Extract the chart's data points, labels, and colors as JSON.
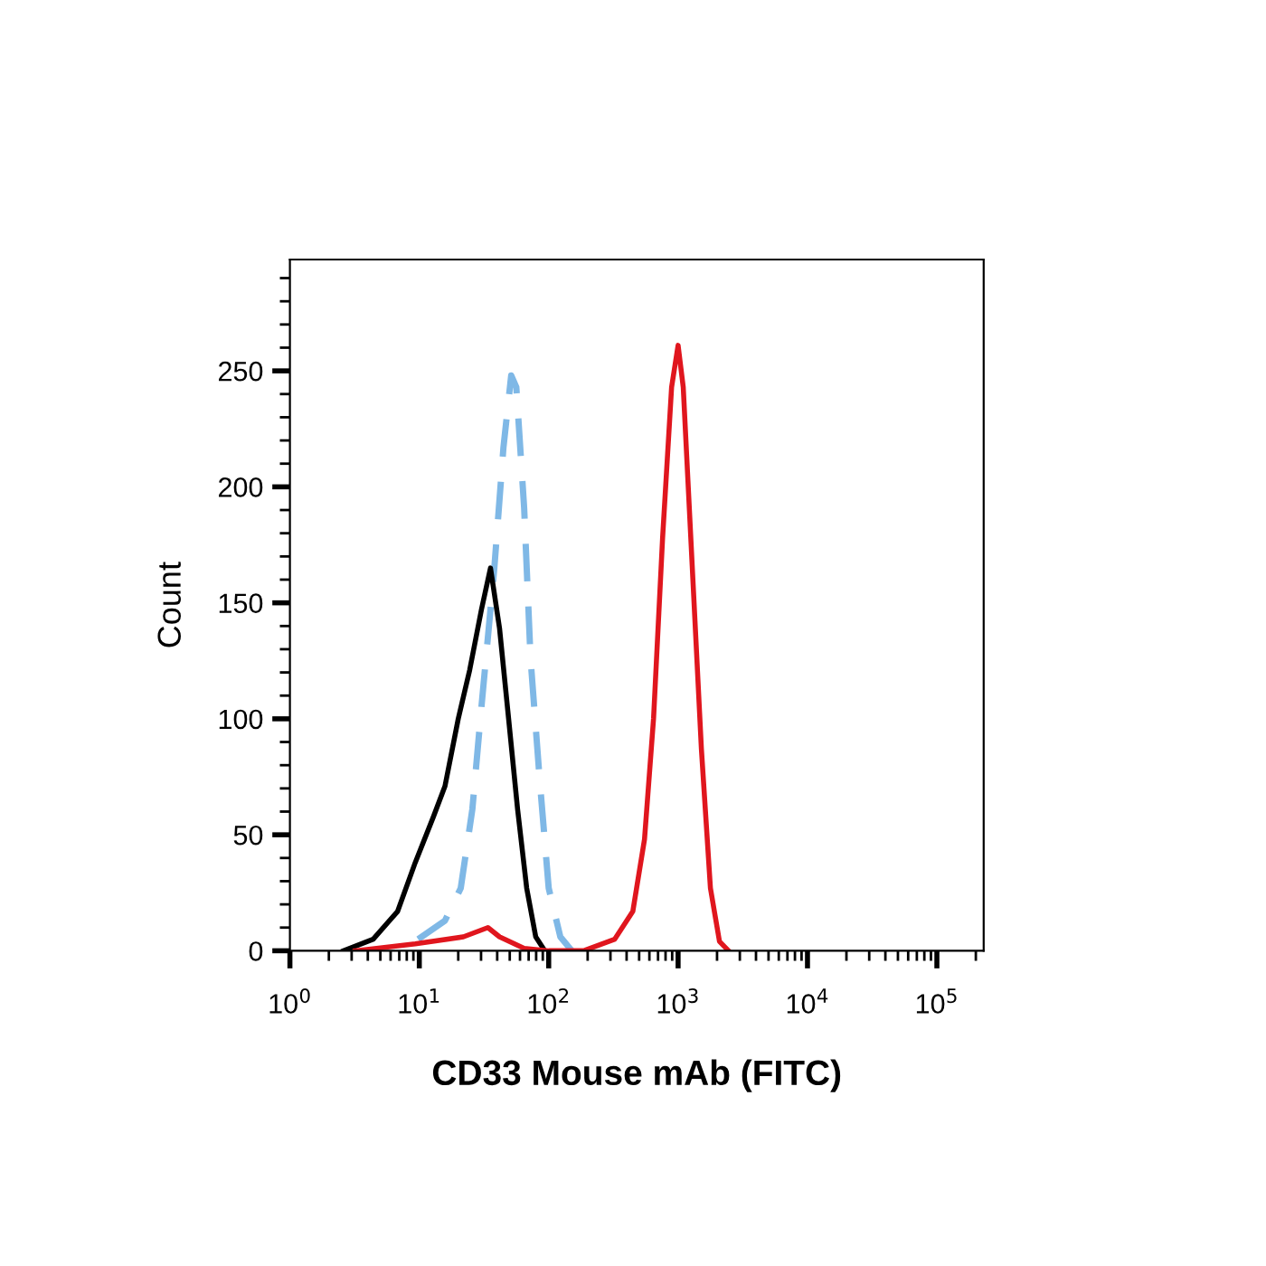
{
  "chart_data": {
    "type": "line",
    "xlabel": "CD33 Mouse mAb (FITC)",
    "ylabel": "Count",
    "log": "x",
    "xlim": [
      1,
      230000
    ],
    "ylim": [
      0,
      298
    ],
    "xticks": [
      {
        "value": 1,
        "label": "10$^{0}$"
      },
      {
        "value": 10,
        "label": "10$^{1}$"
      },
      {
        "value": 100,
        "label": "10$^{2}$"
      },
      {
        "value": 1000,
        "label": "10$^{3}$"
      },
      {
        "value": 10000,
        "label": "10$^{4}$"
      },
      {
        "value": 100000,
        "label": "10$^{5}$"
      }
    ],
    "yticks": [
      0,
      50,
      100,
      150,
      200,
      250
    ],
    "grid": false,
    "legend": false,
    "marker": "none",
    "series": [
      {
        "color": "#7fb8e6",
        "line_style": "dashed",
        "x": [
          9.8,
          15.8,
          20.9,
          25.7,
          30.2,
          38,
          44.7,
          51.3,
          56.2,
          64.6,
          72.4,
          85.1,
          100,
          123,
          151
        ],
        "values": [
          5,
          13,
          27,
          61,
          105,
          165,
          217,
          248,
          243,
          191,
          126,
          74,
          27,
          6,
          0
        ]
      },
      {
        "color": "#000000",
        "line_style": "solid",
        "x": [
          2.6,
          4.4,
          6.8,
          9.3,
          12.9,
          15.8,
          20,
          24.5,
          30.2,
          35.5,
          41.7,
          49,
          57.5,
          67.6,
          79.4,
          93.3
        ],
        "values": [
          0,
          5,
          17,
          38,
          58,
          71,
          100,
          121,
          147,
          165,
          139,
          100,
          61,
          27,
          6,
          0
        ]
      },
      {
        "color": "#e0161e",
        "line_style": "solid",
        "x": [
          3.2,
          9.3,
          21.9,
          33.9,
          41.7,
          64.6,
          100,
          186,
          324,
          447,
          550,
          646,
          759,
          891,
          1000,
          1096,
          1288,
          1514,
          1778,
          2089,
          2455
        ],
        "values": [
          0,
          3,
          6,
          10,
          6,
          1,
          0,
          0,
          5,
          17,
          48,
          100,
          178,
          243,
          261,
          243,
          165,
          87,
          27,
          4,
          0
        ]
      }
    ]
  }
}
